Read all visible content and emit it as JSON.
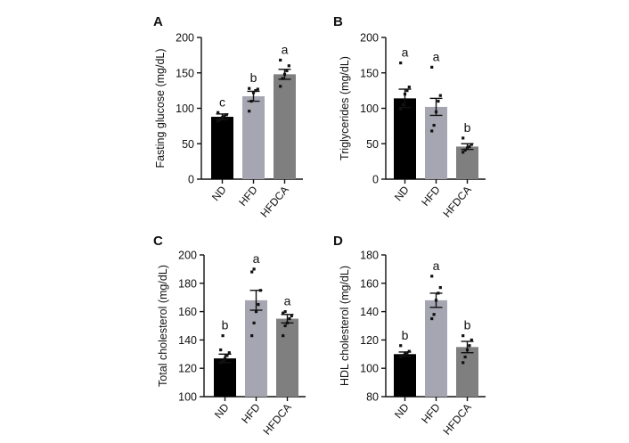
{
  "colors": {
    "ND": "#000000",
    "HFD": "#a6a6b2",
    "HFDCA": "#7f7f7f"
  },
  "chart_data": [
    {
      "panel": "A",
      "type": "bar",
      "ylabel": "Fasting glucose (mg/dL)",
      "ylim": [
        0,
        200
      ],
      "yticks": [
        0,
        50,
        100,
        150,
        200
      ],
      "categories": [
        "ND",
        "HFD",
        "HFDCA"
      ],
      "values": [
        88,
        117,
        148
      ],
      "errors": [
        4,
        7,
        7
      ],
      "letters": [
        "c",
        "b",
        "a"
      ],
      "points": [
        [
          82,
          84,
          87,
          89,
          91,
          94
        ],
        [
          96,
          110,
          122,
          125,
          127,
          128
        ],
        [
          131,
          142,
          148,
          153,
          160,
          168
        ]
      ]
    },
    {
      "panel": "B",
      "type": "bar",
      "ylabel": "Triglycerides (mg/dL)",
      "ylim": [
        0,
        200
      ],
      "yticks": [
        0,
        50,
        100,
        150,
        200
      ],
      "categories": [
        "ND",
        "HFD",
        "HFDCA"
      ],
      "values": [
        114,
        102,
        46
      ],
      "errors": [
        13,
        12,
        4
      ],
      "letters": [
        "a",
        "a",
        "b"
      ],
      "points": [
        [
          99,
          105,
          120,
          125,
          130,
          164
        ],
        [
          68,
          76,
          95,
          110,
          118,
          158
        ],
        [
          38,
          41,
          44,
          46,
          49,
          58
        ]
      ]
    },
    {
      "panel": "C",
      "type": "bar",
      "ylabel": "Total cholesterol (mg/dL)",
      "ylim": [
        100,
        200
      ],
      "yticks": [
        100,
        120,
        140,
        160,
        180,
        200
      ],
      "categories": [
        "ND",
        "HFD",
        "HFDCA"
      ],
      "values": [
        127,
        168,
        155
      ],
      "errors": [
        3,
        7,
        3
      ],
      "letters": [
        "b",
        "a",
        "a"
      ],
      "points": [
        [
          124,
          125,
          127,
          129,
          131,
          133,
          143
        ],
        [
          143,
          152,
          160,
          165,
          175,
          188,
          190
        ],
        [
          143,
          150,
          152,
          155,
          157,
          159,
          160
        ]
      ]
    },
    {
      "panel": "D",
      "type": "bar",
      "ylabel": "HDL cholesterol (mg/dL)",
      "ylim": [
        80,
        180
      ],
      "yticks": [
        80,
        100,
        120,
        140,
        160,
        180
      ],
      "categories": [
        "ND",
        "HFD",
        "HFDCA"
      ],
      "values": [
        110,
        148,
        115
      ],
      "errors": [
        1.5,
        5,
        4
      ],
      "letters": [
        "b",
        "a",
        "b"
      ],
      "points": [
        [
          108,
          109,
          110,
          111,
          112,
          116
        ],
        [
          135,
          138,
          148,
          153,
          157,
          165
        ],
        [
          104,
          108,
          113,
          116,
          120,
          123
        ]
      ]
    }
  ]
}
